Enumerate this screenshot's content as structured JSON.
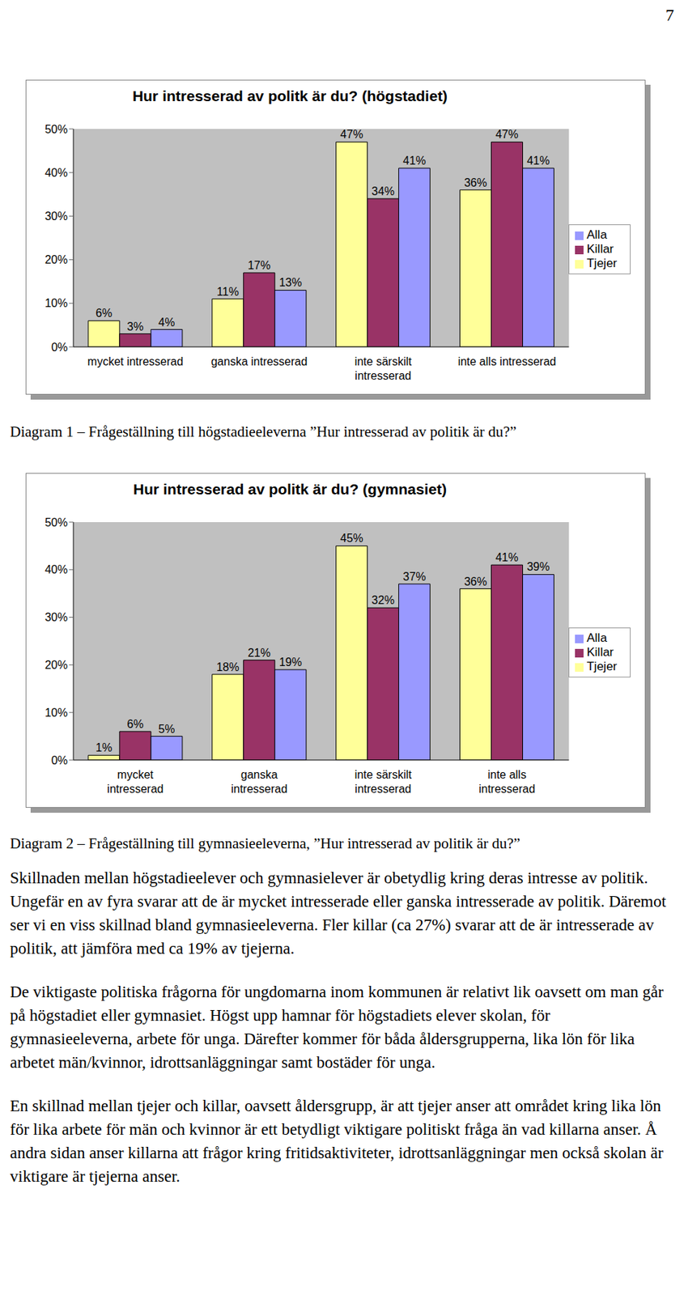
{
  "page_number": "7",
  "chart_data": [
    {
      "type": "bar",
      "title": "Hur intresserad av politk är du? (högstadiet)",
      "caption": "Diagram 1 – Frågeställning till högstadieeleverna ”Hur intresserad av politik är du?”",
      "categories": [
        "mycket intresserad",
        "ganska intresserad",
        "inte särskilt intresserad",
        "inte alls intresserad"
      ],
      "series": [
        {
          "name": "Tjejer",
          "color": "#ffff99",
          "values": [
            6,
            11,
            47,
            36
          ],
          "value_labels": [
            "6%",
            "11%",
            "47%",
            "36%"
          ]
        },
        {
          "name": "Killar",
          "color": "#993366",
          "values": [
            3,
            17,
            34,
            47
          ],
          "value_labels": [
            "3%",
            "17%",
            "34%",
            "47%"
          ]
        },
        {
          "name": "Alla",
          "color": "#9999ff",
          "values": [
            4,
            13,
            41,
            41
          ],
          "value_labels": [
            "4%",
            "13%",
            "41%",
            "41%"
          ]
        }
      ],
      "ylim": [
        0,
        50
      ],
      "yticks": [
        {
          "value": 0,
          "label": "0%"
        },
        {
          "value": 10,
          "label": "10%"
        },
        {
          "value": 20,
          "label": "20%"
        },
        {
          "value": 30,
          "label": "30%"
        },
        {
          "value": 40,
          "label": "40%"
        },
        {
          "value": 50,
          "label": "50%"
        }
      ],
      "grid": false,
      "legend": "right",
      "data_labels": true
    },
    {
      "type": "bar",
      "title": "Hur intresserad av politk är du? (gymnasiet)",
      "caption": "Diagram 2 – Frågeställning till gymnasieeleverna, ”Hur intresserad av politik är du?”",
      "categories": [
        "mycket intresserad",
        "ganska intresserad",
        "inte särskilt intresserad",
        "inte alls intresserad"
      ],
      "series": [
        {
          "name": "Tjejer",
          "color": "#ffff99",
          "values": [
            1,
            18,
            45,
            36
          ],
          "value_labels": [
            "1%",
            "18%",
            "45%",
            "36%"
          ]
        },
        {
          "name": "Killar",
          "color": "#993366",
          "values": [
            6,
            21,
            32,
            41
          ],
          "value_labels": [
            "6%",
            "21%",
            "32%",
            "41%"
          ]
        },
        {
          "name": "Alla",
          "color": "#9999ff",
          "values": [
            5,
            19,
            37,
            39
          ],
          "value_labels": [
            "5%",
            "19%",
            "37%",
            "39%"
          ]
        }
      ],
      "ylim": [
        0,
        50
      ],
      "yticks": [
        {
          "value": 0,
          "label": "0%"
        },
        {
          "value": 10,
          "label": "10%"
        },
        {
          "value": 20,
          "label": "20%"
        },
        {
          "value": 30,
          "label": "30%"
        },
        {
          "value": 40,
          "label": "40%"
        },
        {
          "value": 50,
          "label": "50%"
        }
      ],
      "grid": false,
      "legend": "right",
      "data_labels": true
    }
  ],
  "paragraphs": [
    "Skillnaden mellan högstadieelever och gymnasielever är obetydlig kring deras intresse av politik. Ungefär en av fyra svarar att de är mycket intresserade eller ganska intresserade av politik. Däremot ser vi en viss skillnad bland gymnasieeleverna. Fler killar (ca 27%) svarar att de är intresserade av politik, att jämföra med ca 19% av tjejerna.",
    "De viktigaste politiska frågorna för ungdomarna inom kommunen är relativt lik oavsett om man går på högstadiet eller gymnasiet. Högst upp hamnar för högstadiets elever skolan, för gymnasieeleverna, arbete för unga. Därefter kommer för båda åldersgrupperna, lika lön för lika arbetet män/kvinnor, idrottsanläggningar samt bostäder för unga.",
    "En skillnad mellan tjejer och killar, oavsett åldersgrupp, är att tjejer anser att området kring lika lön för lika arbete för män och kvinnor är ett betydligt viktigare politiskt fråga än vad killarna anser. Å andra sidan anser killarna att frågor kring fritidsaktiviteter, idrottsanläggningar men också skolan är viktigare är tjejerna anser."
  ]
}
